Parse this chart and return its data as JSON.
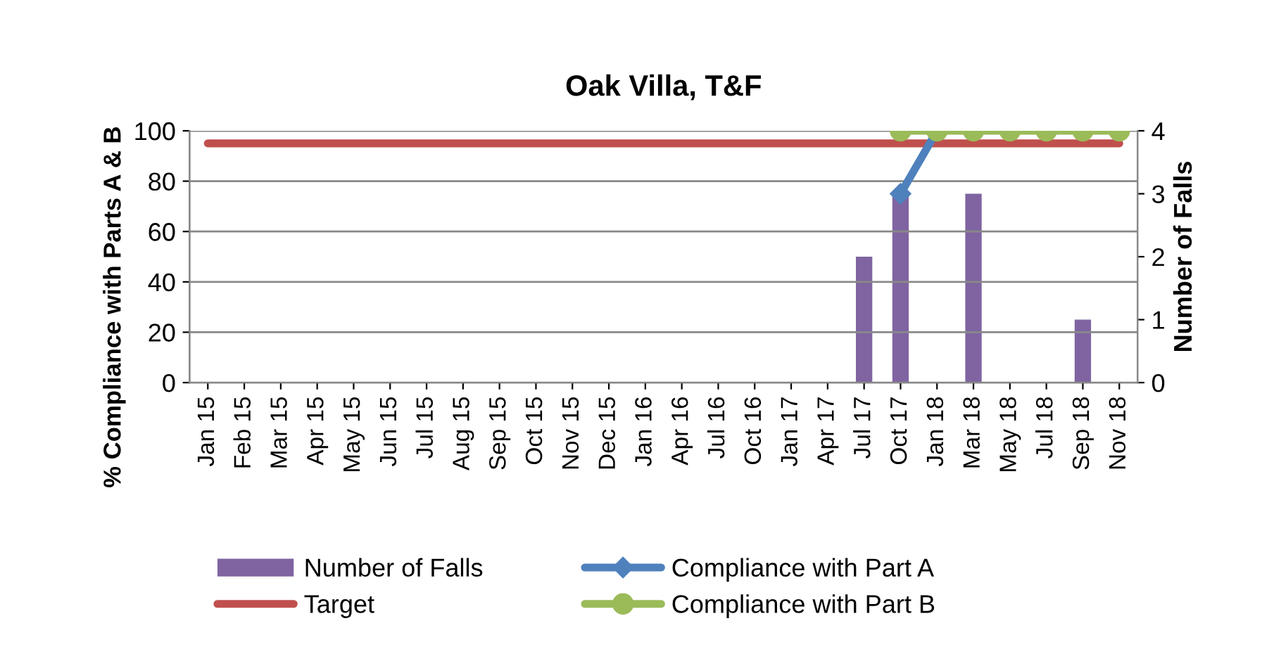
{
  "chart_data": {
    "type": "bar",
    "title": "Oak Villa, T&F",
    "ylabel": "% Compliance with Parts A & B",
    "y2label": "Number of Falls",
    "categories": [
      "Jan 15",
      "Feb 15",
      "Mar 15",
      "Apr 15",
      "May 15",
      "Jun 15",
      "Jul 15",
      "Aug 15",
      "Sep 15",
      "Oct 15",
      "Nov 15",
      "Dec 15",
      "Jan 16",
      "Apr 16",
      "Jul 16",
      "Oct 16",
      "Jan 17",
      "Apr 17",
      "Jul 17",
      "Oct 17",
      "Jan 18",
      "Mar 18",
      "May 18",
      "Jul 18",
      "Sep 18",
      "Nov 18"
    ],
    "series": [
      {
        "name": "Number of Falls",
        "axis": "y2",
        "color": "#8064a2",
        "values": [
          0,
          0,
          0,
          0,
          0,
          0,
          0,
          0,
          0,
          0,
          0,
          0,
          0,
          0,
          0,
          0,
          0,
          0,
          2,
          3,
          0,
          3,
          0,
          0,
          1,
          0
        ]
      },
      {
        "name": "Target",
        "type": "line",
        "color": "#c0504d",
        "marker": "none",
        "values": [
          95,
          95,
          95,
          95,
          95,
          95,
          95,
          95,
          95,
          95,
          95,
          95,
          95,
          95,
          95,
          95,
          95,
          95,
          95,
          95,
          95,
          95,
          95,
          95,
          95,
          95
        ]
      },
      {
        "name": "Compliance with Part A",
        "type": "line",
        "color": "#4f81bd",
        "marker": "diamond",
        "values": [
          null,
          null,
          null,
          null,
          null,
          null,
          null,
          null,
          null,
          null,
          null,
          null,
          null,
          null,
          null,
          null,
          null,
          null,
          null,
          75,
          100,
          null,
          null,
          null,
          null,
          null
        ]
      },
      {
        "name": "Compliance with Part B",
        "type": "line",
        "color": "#9bbb59",
        "marker": "circle",
        "values": [
          null,
          null,
          null,
          null,
          null,
          null,
          null,
          null,
          null,
          null,
          null,
          null,
          null,
          null,
          null,
          null,
          null,
          null,
          null,
          100,
          100,
          100,
          100,
          100,
          100,
          100
        ]
      }
    ],
    "ylim": [
      0,
      100
    ],
    "yticks": [
      0,
      20,
      40,
      60,
      80,
      100
    ],
    "y2lim": [
      0,
      4
    ],
    "y2ticks": [
      0,
      1,
      2,
      3,
      4
    ],
    "grid": "y",
    "legend": "bottom"
  }
}
